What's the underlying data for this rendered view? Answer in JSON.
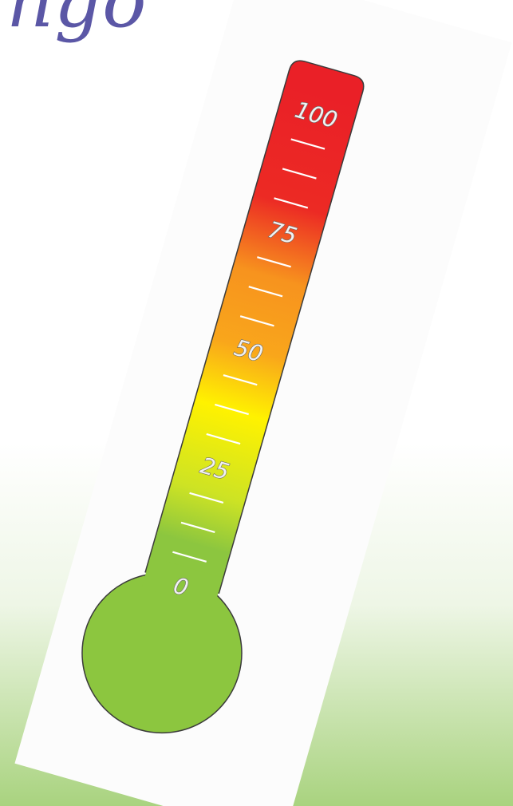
{
  "title_fragment": "ngo",
  "colors": {
    "title": "#5b57a6",
    "red": "#ea2027",
    "orange": "#f7931e",
    "yellow": "#fff200",
    "green": "#8cc63f",
    "card": "#fdfdfd",
    "bg_top": "#ffffff",
    "bg_bottom": "#a9d37f"
  },
  "thermometer": {
    "min": 0,
    "max": 100,
    "level": 100,
    "major_ticks": [
      "100",
      "75",
      "50",
      "25",
      "0"
    ],
    "minor_ticks_per_interval": 3
  }
}
